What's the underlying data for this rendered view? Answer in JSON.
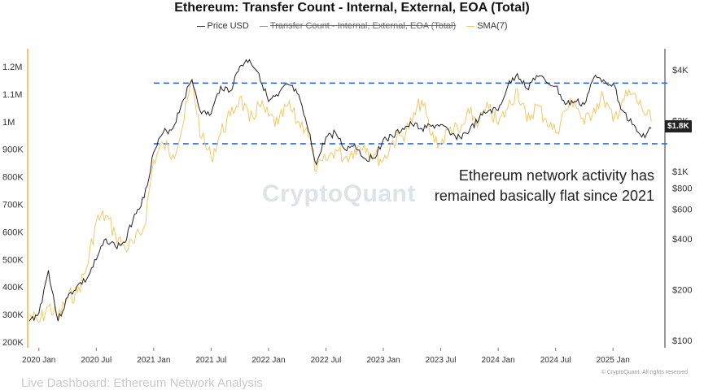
{
  "chart_data": {
    "type": "line",
    "title": "Ethereum: Transfer Count - Internal, External, EOA (Total)",
    "legend": {
      "placement": "top-center",
      "items": [
        {
          "label": "Price USD",
          "style": "dark-line"
        },
        {
          "label": "Transfer Count - Internal, External, EOA (Total)",
          "style": "strikethrough"
        },
        {
          "label": "SMA(7)",
          "style": "yellow-line"
        }
      ]
    },
    "x_axis": {
      "ticks": [
        "2020 Jan",
        "2020 Jul",
        "2021 Jan",
        "2021 Jul",
        "2022 Jan",
        "2022 Jul",
        "2023 Jan",
        "2023 Jul",
        "2024 Jan",
        "2024 Jul",
        "2025 Jan"
      ],
      "range": [
        "2019-12",
        "2025-06"
      ]
    },
    "y_left": {
      "ticks": [
        "1.2M",
        "1.1M",
        "1M",
        "900K",
        "800K",
        "700K",
        "600K",
        "500K",
        "400K",
        "300K",
        "200K"
      ],
      "range": [
        200000,
        1200000
      ]
    },
    "y_right": {
      "scale": "log",
      "ticks": [
        "$4K",
        "$2K",
        "$1K",
        "$800",
        "$600",
        "$400",
        "$200",
        "$100"
      ],
      "range": [
        100,
        4000
      ],
      "current_price_label": "$1.8K"
    },
    "reference_lines": [
      {
        "axis": "left",
        "value": 1140000,
        "style": "dashed",
        "color": "#2f6fe0",
        "from": "2021-01"
      },
      {
        "axis": "left",
        "value": 920000,
        "style": "dashed",
        "color": "#2f6fe0",
        "from": "2021-01"
      }
    ],
    "series": [
      {
        "name": "Price USD",
        "axis": "right",
        "color": "#222222",
        "points": [
          [
            "2019-12",
            130
          ],
          [
            "2020-01",
            145
          ],
          [
            "2020-02",
            260
          ],
          [
            "2020-03",
            130
          ],
          [
            "2020-04",
            180
          ],
          [
            "2020-05",
            210
          ],
          [
            "2020-06",
            230
          ],
          [
            "2020-07",
            300
          ],
          [
            "2020-08",
            400
          ],
          [
            "2020-09",
            360
          ],
          [
            "2020-10",
            380
          ],
          [
            "2020-11",
            560
          ],
          [
            "2020-12",
            700
          ],
          [
            "2021-01",
            1300
          ],
          [
            "2021-02",
            1700
          ],
          [
            "2021-03",
            1800
          ],
          [
            "2021-04",
            2600
          ],
          [
            "2021-05",
            3500
          ],
          [
            "2021-06",
            2200
          ],
          [
            "2021-07",
            2200
          ],
          [
            "2021-08",
            3200
          ],
          [
            "2021-09",
            3000
          ],
          [
            "2021-10",
            4200
          ],
          [
            "2021-11",
            4600
          ],
          [
            "2021-12",
            3800
          ],
          [
            "2022-01",
            2600
          ],
          [
            "2022-02",
            2800
          ],
          [
            "2022-03",
            3300
          ],
          [
            "2022-04",
            2900
          ],
          [
            "2022-05",
            1900
          ],
          [
            "2022-06",
            1100
          ],
          [
            "2022-07",
            1600
          ],
          [
            "2022-08",
            1700
          ],
          [
            "2022-09",
            1350
          ],
          [
            "2022-10",
            1450
          ],
          [
            "2022-11",
            1200
          ],
          [
            "2022-12",
            1200
          ],
          [
            "2023-01",
            1550
          ],
          [
            "2023-02",
            1600
          ],
          [
            "2023-03",
            1800
          ],
          [
            "2023-04",
            1900
          ],
          [
            "2023-05",
            1800
          ],
          [
            "2023-06",
            1850
          ],
          [
            "2023-07",
            1900
          ],
          [
            "2023-08",
            1650
          ],
          [
            "2023-09",
            1600
          ],
          [
            "2023-10",
            1750
          ],
          [
            "2023-11",
            2050
          ],
          [
            "2023-12",
            2300
          ],
          [
            "2024-01",
            2300
          ],
          [
            "2024-02",
            3200
          ],
          [
            "2024-03",
            3800
          ],
          [
            "2024-04",
            3100
          ],
          [
            "2024-05",
            3700
          ],
          [
            "2024-06",
            3400
          ],
          [
            "2024-07",
            3200
          ],
          [
            "2024-08",
            2500
          ],
          [
            "2024-09",
            2600
          ],
          [
            "2024-10",
            2500
          ],
          [
            "2024-11",
            3600
          ],
          [
            "2024-12",
            3500
          ],
          [
            "2025-01",
            3300
          ],
          [
            "2025-02",
            2300
          ],
          [
            "2025-03",
            1900
          ],
          [
            "2025-04",
            1600
          ],
          [
            "2025-05",
            1800
          ]
        ]
      },
      {
        "name": "SMA(7)",
        "axis": "left",
        "color": "#f0c96a",
        "points": [
          [
            "2019-12",
            300000
          ],
          [
            "2020-01",
            270000
          ],
          [
            "2020-02",
            330000
          ],
          [
            "2020-03",
            290000
          ],
          [
            "2020-04",
            360000
          ],
          [
            "2020-05",
            380000
          ],
          [
            "2020-06",
            470000
          ],
          [
            "2020-07",
            640000
          ],
          [
            "2020-08",
            660000
          ],
          [
            "2020-09",
            590000
          ],
          [
            "2020-10",
            540000
          ],
          [
            "2020-11",
            560000
          ],
          [
            "2020-12",
            620000
          ],
          [
            "2021-01",
            860000
          ],
          [
            "2021-02",
            920000
          ],
          [
            "2021-03",
            880000
          ],
          [
            "2021-04",
            980000
          ],
          [
            "2021-05",
            1150000
          ],
          [
            "2021-06",
            940000
          ],
          [
            "2021-07",
            870000
          ],
          [
            "2021-08",
            960000
          ],
          [
            "2021-09",
            1020000
          ],
          [
            "2021-10",
            1090000
          ],
          [
            "2021-11",
            1000000
          ],
          [
            "2021-12",
            1060000
          ],
          [
            "2022-01",
            1020000
          ],
          [
            "2022-02",
            990000
          ],
          [
            "2022-03",
            1060000
          ],
          [
            "2022-04",
            1000000
          ],
          [
            "2022-05",
            980000
          ],
          [
            "2022-06",
            820000
          ],
          [
            "2022-07",
            860000
          ],
          [
            "2022-08",
            900000
          ],
          [
            "2022-09",
            870000
          ],
          [
            "2022-10",
            900000
          ],
          [
            "2022-11",
            920000
          ],
          [
            "2022-12",
            880000
          ],
          [
            "2023-01",
            860000
          ],
          [
            "2023-02",
            930000
          ],
          [
            "2023-03",
            950000
          ],
          [
            "2023-04",
            1000000
          ],
          [
            "2023-05",
            1080000
          ],
          [
            "2023-06",
            950000
          ],
          [
            "2023-07",
            920000
          ],
          [
            "2023-08",
            980000
          ],
          [
            "2023-09",
            960000
          ],
          [
            "2023-10",
            1030000
          ],
          [
            "2023-11",
            1000000
          ],
          [
            "2023-12",
            1050000
          ],
          [
            "2024-01",
            990000
          ],
          [
            "2024-02",
            1050000
          ],
          [
            "2024-03",
            1120000
          ],
          [
            "2024-04",
            1000000
          ],
          [
            "2024-05",
            1060000
          ],
          [
            "2024-06",
            1010000
          ],
          [
            "2024-07",
            960000
          ],
          [
            "2024-08",
            1040000
          ],
          [
            "2024-09",
            1080000
          ],
          [
            "2024-10",
            990000
          ],
          [
            "2024-11",
            1050000
          ],
          [
            "2024-12",
            1090000
          ],
          [
            "2025-01",
            1000000
          ],
          [
            "2025-02",
            1080000
          ],
          [
            "2025-03",
            1100000
          ],
          [
            "2025-04",
            1050000
          ],
          [
            "2025-05",
            1000000
          ]
        ]
      }
    ],
    "annotation": "Ethereum network activity has remained basically flat since 2021",
    "watermark": "CryptoQuant",
    "grid": false
  },
  "copyright": "© CryptoQuant. All rights reserved",
  "footer_text": "Live Dashboard: Ethereum Network Analysis",
  "colors": {
    "price": "#222222",
    "sma": "#f0c96a",
    "reference": "#2f6fe0",
    "left_axis": "#f0c96a"
  }
}
